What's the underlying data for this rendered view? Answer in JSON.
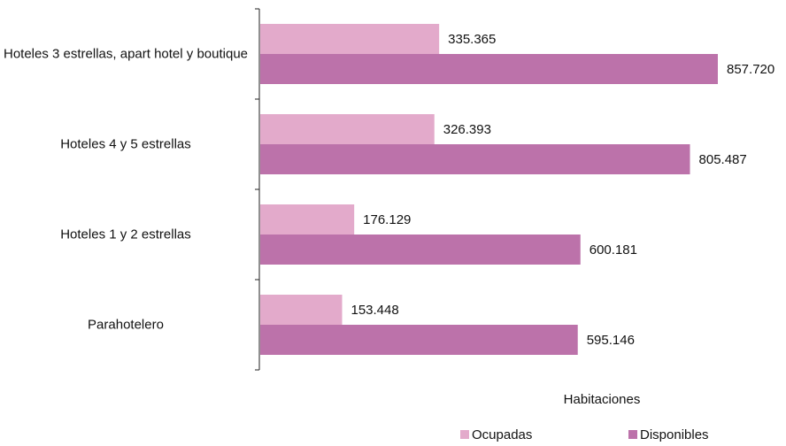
{
  "chart_data": {
    "type": "bar",
    "orientation": "horizontal",
    "categories": [
      "Hoteles 3 estrellas, apart hotel y boutique",
      "Hoteles 4 y 5 estrellas",
      "Hoteles 1 y 2 estrellas",
      "Parahotelero"
    ],
    "series": [
      {
        "name": "Ocupadas",
        "color": "#e3aacb",
        "values": [
          335365,
          326393,
          176129,
          153448
        ],
        "value_labels": [
          "335.365",
          "326.393",
          "176.129",
          "153.448"
        ]
      },
      {
        "name": "Disponibles",
        "color": "#bc72aa",
        "values": [
          857720,
          805487,
          600181,
          595146
        ],
        "value_labels": [
          "857.720",
          "805.487",
          "600.181",
          "595.146"
        ]
      }
    ],
    "x_label": "Habitaciones"
  }
}
